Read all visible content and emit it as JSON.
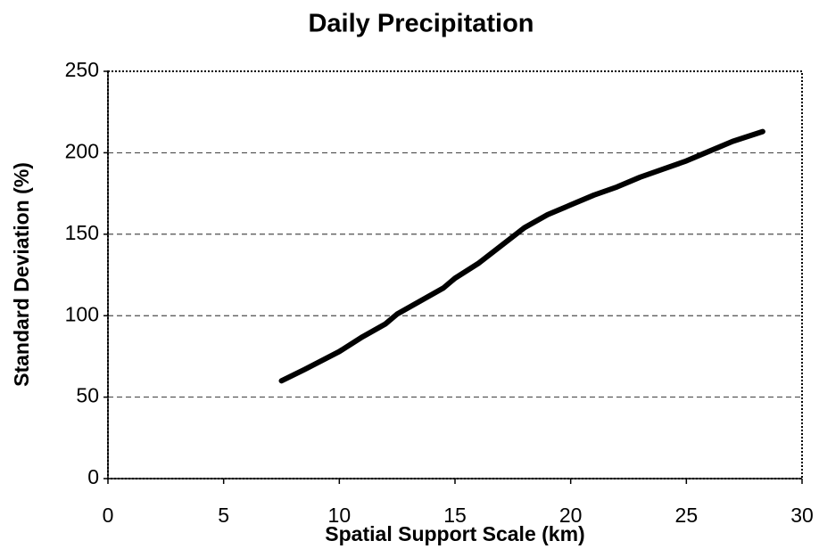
{
  "chart_data": {
    "type": "line",
    "title": "Daily Precipitation",
    "x_label": "Spatial Support Scale (km)",
    "y_label": "Standard Deviation (%)",
    "series": [
      {
        "name": "Daily Precipitation",
        "color": "#000000",
        "x": [
          7.5,
          8.5,
          10,
          11,
          12,
          12.5,
          13.5,
          14.5,
          15,
          16,
          17,
          18,
          19,
          20,
          21,
          22,
          23,
          24,
          25,
          26,
          27,
          28.3
        ],
        "values": [
          60,
          67,
          78,
          87,
          95,
          101,
          109,
          117,
          123,
          132,
          143,
          154,
          162,
          168,
          174,
          179,
          185,
          190,
          195,
          201,
          207,
          213
        ]
      }
    ],
    "xlim": [
      0,
      30
    ],
    "xticks": [
      0,
      5,
      10,
      15,
      20,
      25,
      30
    ],
    "ylim": [
      0,
      250
    ],
    "yticks": [
      0,
      50,
      100,
      150,
      200,
      250
    ],
    "grid": true
  }
}
